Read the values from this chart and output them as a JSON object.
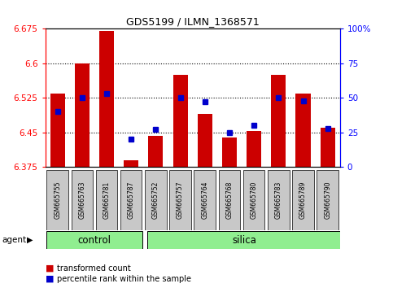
{
  "title": "GDS5199 / ILMN_1368571",
  "samples": [
    "GSM665755",
    "GSM665763",
    "GSM665781",
    "GSM665787",
    "GSM665752",
    "GSM665757",
    "GSM665764",
    "GSM665768",
    "GSM665780",
    "GSM665783",
    "GSM665789",
    "GSM665790"
  ],
  "groups": [
    "control",
    "control",
    "control",
    "control",
    "silica",
    "silica",
    "silica",
    "silica",
    "silica",
    "silica",
    "silica",
    "silica"
  ],
  "transformed_count": [
    6.535,
    6.6,
    6.67,
    6.39,
    6.442,
    6.575,
    6.49,
    6.44,
    6.453,
    6.575,
    6.535,
    6.46
  ],
  "percentile_rank": [
    40,
    50,
    53,
    20,
    27,
    50,
    47,
    25,
    30,
    50,
    48,
    28
  ],
  "y_min": 6.375,
  "y_max": 6.675,
  "y_ticks": [
    6.375,
    6.45,
    6.525,
    6.6,
    6.675
  ],
  "y2_ticks": [
    0,
    25,
    50,
    75,
    100
  ],
  "bar_color": "#cc0000",
  "dot_color": "#0000cc",
  "group_color": "#90ee90",
  "bg_color": "#c8c8c8",
  "legend_items": [
    "transformed count",
    "percentile rank within the sample"
  ],
  "n_control": 4,
  "n_silica": 8
}
